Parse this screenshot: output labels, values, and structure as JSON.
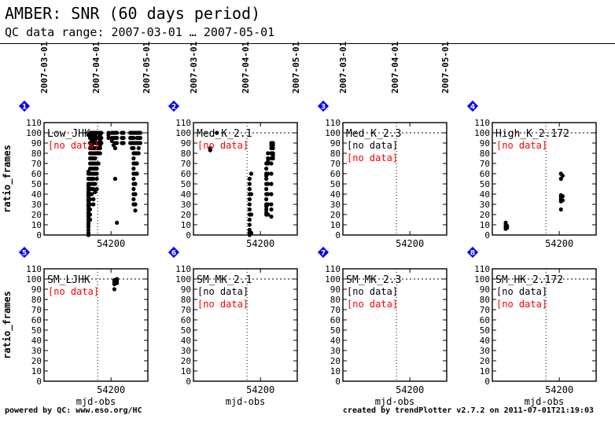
{
  "header": {
    "title": "AMBER: SNR (60 days period)",
    "subtitle": "QC data range: 2007-03-01 … 2007-05-01"
  },
  "footer": {
    "left": "powered by QC: www.eso.org/HC",
    "right": "created by trendPlotter v2.7.2 on 2011-07-01T21:19:03"
  },
  "colors": {
    "no_data": "#ff0000",
    "points": "#000000",
    "marker_fill": "#0000ff"
  },
  "chart_data": {
    "type": "scatter",
    "xlabel": "mjd-obs",
    "ylabel": "ratio_frames",
    "xlim": [
      54160,
      54222
    ],
    "ylim": [
      0,
      110
    ],
    "yticks": [
      0,
      10,
      20,
      30,
      40,
      50,
      60,
      70,
      80,
      90,
      100,
      110
    ],
    "xticks": [
      54200
    ],
    "reference_line_y": 100,
    "reference_line_x": 54192,
    "date_ticks": [
      {
        "label": "2007-03-01",
        "x": 54160
      },
      {
        "label": "2007-04-01",
        "x": 54191
      },
      {
        "label": "2007-05-01",
        "x": 54221
      }
    ],
    "no_data_text": "[no data]",
    "panels": [
      {
        "index": "1",
        "title": "Low_JHK",
        "show_dates": true,
        "notes": [
          {
            "text": "[no data]",
            "color": "#ff0000"
          }
        ],
        "clusters": [
          {
            "x": 54186.5,
            "y": [
              0,
              2,
              5,
              8,
              10,
              12,
              15,
              18,
              20,
              22,
              25,
              28,
              30,
              33,
              35,
              38,
              40,
              42,
              45,
              48,
              50,
              55,
              60,
              62,
              98
            ]
          },
          {
            "x": 54187.5,
            "y": [
              15,
              20,
              25,
              30,
              35,
              40,
              45,
              50,
              55,
              60,
              65,
              70,
              75,
              80,
              85,
              90,
              95,
              100
            ]
          },
          {
            "x": 54188.5,
            "y": [
              40,
              45,
              50,
              55,
              60,
              65,
              70,
              75,
              80,
              85,
              88,
              90,
              92,
              95,
              97,
              100
            ]
          },
          {
            "x": 54189.5,
            "y": [
              30,
              35,
              45,
              50,
              55,
              60,
              65,
              70,
              75,
              80,
              85,
              90,
              95,
              100
            ]
          },
          {
            "x": 54190.5,
            "y": [
              42,
              50,
              60,
              65,
              70,
              75,
              80,
              85,
              90,
              92,
              95,
              97,
              100
            ]
          },
          {
            "x": 54191.5,
            "y": [
              45,
              55,
              60,
              65,
              70,
              80,
              85,
              90,
              95,
              100
            ]
          },
          {
            "x": 54192.5,
            "y": [
              70,
              80,
              85,
              90,
              95,
              100
            ]
          },
          {
            "x": 54193.5,
            "y": [
              80,
              85,
              88,
              90,
              92,
              95,
              98,
              100
            ]
          },
          {
            "x": 54194.2,
            "y": [
              90,
              95,
              100
            ]
          },
          {
            "x": 54198.5,
            "y": [
              95,
              98,
              100
            ]
          },
          {
            "x": 54200.5,
            "y": [
              92,
              95,
              100
            ]
          },
          {
            "x": 54201.5,
            "y": [
              88,
              95,
              100
            ]
          },
          {
            "x": 54202.5,
            "y": [
              55,
              85,
              90,
              95,
              100
            ]
          },
          {
            "x": 54203.5,
            "y": [
              12,
              90,
              95,
              100
            ]
          },
          {
            "x": 54206.5,
            "y": [
              90,
              95,
              100
            ]
          },
          {
            "x": 54207.5,
            "y": [
              90,
              95,
              100
            ]
          },
          {
            "x": 54211.5,
            "y": [
              90,
              95,
              100
            ]
          },
          {
            "x": 54212.5,
            "y": [
              85,
              90,
              95,
              100
            ]
          },
          {
            "x": 54213.5,
            "y": [
              30,
              35,
              40,
              45,
              50,
              55,
              60,
              65,
              70,
              75,
              80,
              85,
              90,
              95,
              100
            ]
          },
          {
            "x": 54214.5,
            "y": [
              24,
              30,
              40,
              50,
              60,
              70,
              80,
              90,
              100
            ]
          },
          {
            "x": 54215.5,
            "y": [
              60,
              70,
              80,
              90,
              95,
              100
            ]
          },
          {
            "x": 54216.5,
            "y": [
              80,
              85,
              90,
              95,
              100
            ]
          },
          {
            "x": 54217.5,
            "y": [
              90,
              95,
              100
            ]
          }
        ]
      },
      {
        "index": "2",
        "title": "Med_K_2.1",
        "show_dates": true,
        "notes": [
          {
            "text": "[no data]",
            "color": "#ff0000"
          }
        ],
        "clusters": [
          {
            "x": 54170,
            "y": [
              83,
              85
            ]
          },
          {
            "x": 54174,
            "y": [
              100
            ]
          },
          {
            "x": 54193.5,
            "y": [
              0,
              2,
              5,
              10,
              15,
              20,
              25,
              30,
              35,
              40,
              45,
              50,
              55
            ]
          },
          {
            "x": 54194.5,
            "y": [
              2,
              20,
              40,
              60
            ]
          },
          {
            "x": 54203.5,
            "y": [
              20,
              22,
              25,
              28,
              30,
              35,
              40,
              45,
              50,
              55,
              58,
              60,
              65,
              70
            ]
          },
          {
            "x": 54204.5,
            "y": [
              20,
              30,
              40,
              50,
              60,
              70,
              72,
              75,
              80
            ]
          },
          {
            "x": 54206.5,
            "y": [
              18,
              25,
              30,
              40,
              50,
              60,
              70,
              75,
              80,
              85,
              88,
              90
            ]
          },
          {
            "x": 54207.5,
            "y": [
              75,
              78,
              80,
              85,
              88,
              90
            ]
          }
        ]
      },
      {
        "index": "3",
        "title": "Med_K_2.3",
        "show_dates": true,
        "notes": [
          {
            "text": "[no data]",
            "color": "#000000"
          },
          {
            "text": "[no data]",
            "color": "#ff0000"
          }
        ],
        "clusters": []
      },
      {
        "index": "4",
        "title": "High_K_2.172",
        "show_dates": false,
        "notes": [
          {
            "text": "[no data]",
            "color": "#ff0000"
          }
        ],
        "clusters": [
          {
            "x": 54168,
            "y": [
              6,
              8,
              10,
              12
            ]
          },
          {
            "x": 54168.8,
            "y": [
              7,
              9
            ]
          },
          {
            "x": 54201,
            "y": [
              25,
              33,
              35,
              37,
              39,
              55,
              60
            ]
          },
          {
            "x": 54202,
            "y": [
              34,
              38,
              58
            ]
          }
        ]
      },
      {
        "index": "5",
        "title": "SM_LJHK",
        "show_dates": false,
        "notes": [
          {
            "text": "[no data]",
            "color": "#ff0000"
          }
        ],
        "clusters": [
          {
            "x": 54202,
            "y": [
              90,
              95,
              97,
              99
            ]
          },
          {
            "x": 54203.5,
            "y": [
              96,
              98,
              100
            ]
          }
        ]
      },
      {
        "index": "6",
        "title": "SM_MK_2.1",
        "show_dates": false,
        "notes": [
          {
            "text": "[no data]",
            "color": "#000000"
          },
          {
            "text": "[no data]",
            "color": "#ff0000"
          }
        ],
        "clusters": []
      },
      {
        "index": "7",
        "title": "SM_MK_2.3",
        "show_dates": false,
        "notes": [
          {
            "text": "[no data]",
            "color": "#000000"
          },
          {
            "text": "[no data]",
            "color": "#ff0000"
          }
        ],
        "clusters": []
      },
      {
        "index": "8",
        "title": "SM_HK_2.172",
        "show_dates": false,
        "notes": [
          {
            "text": "[no data]",
            "color": "#000000"
          },
          {
            "text": "[no data]",
            "color": "#ff0000"
          }
        ],
        "clusters": []
      }
    ]
  }
}
